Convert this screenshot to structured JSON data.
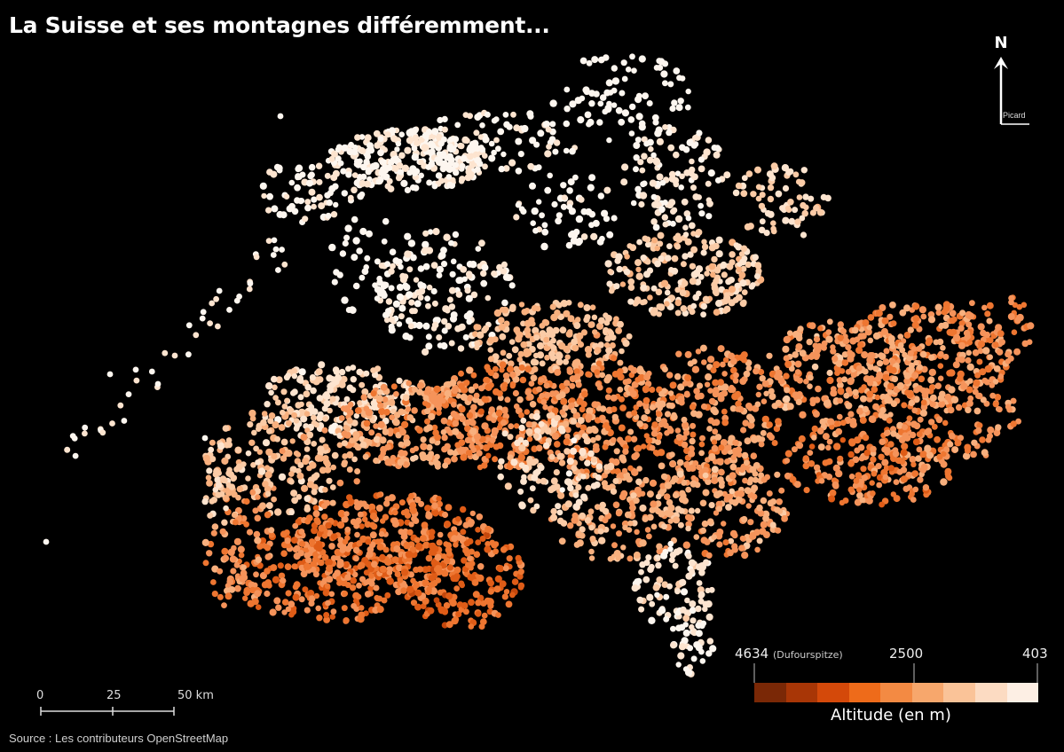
{
  "title": "La Suisse et ses montagnes différemment...",
  "north": {
    "letter": "N",
    "author": "Picard",
    "icon": "north-arrow-icon"
  },
  "scale": {
    "labels": [
      "0",
      "25",
      "50 km"
    ]
  },
  "source": "Source : Les contributeurs OpenStreetMap",
  "legend": {
    "title": "Altitude (en m)",
    "max_label": "4634",
    "max_note": "(Dufourspitze)",
    "mid_label": "2500",
    "min_label": "403",
    "colors": [
      "#7a2806",
      "#a83606",
      "#d4490a",
      "#ee6b1a",
      "#f38a43",
      "#f7a76c",
      "#fac398",
      "#fcdbc2",
      "#fdefe4"
    ]
  },
  "colors": {
    "background": "#000000",
    "low": "#fdf5ee",
    "mid": "#f7a46a",
    "high": "#c7450c"
  }
}
